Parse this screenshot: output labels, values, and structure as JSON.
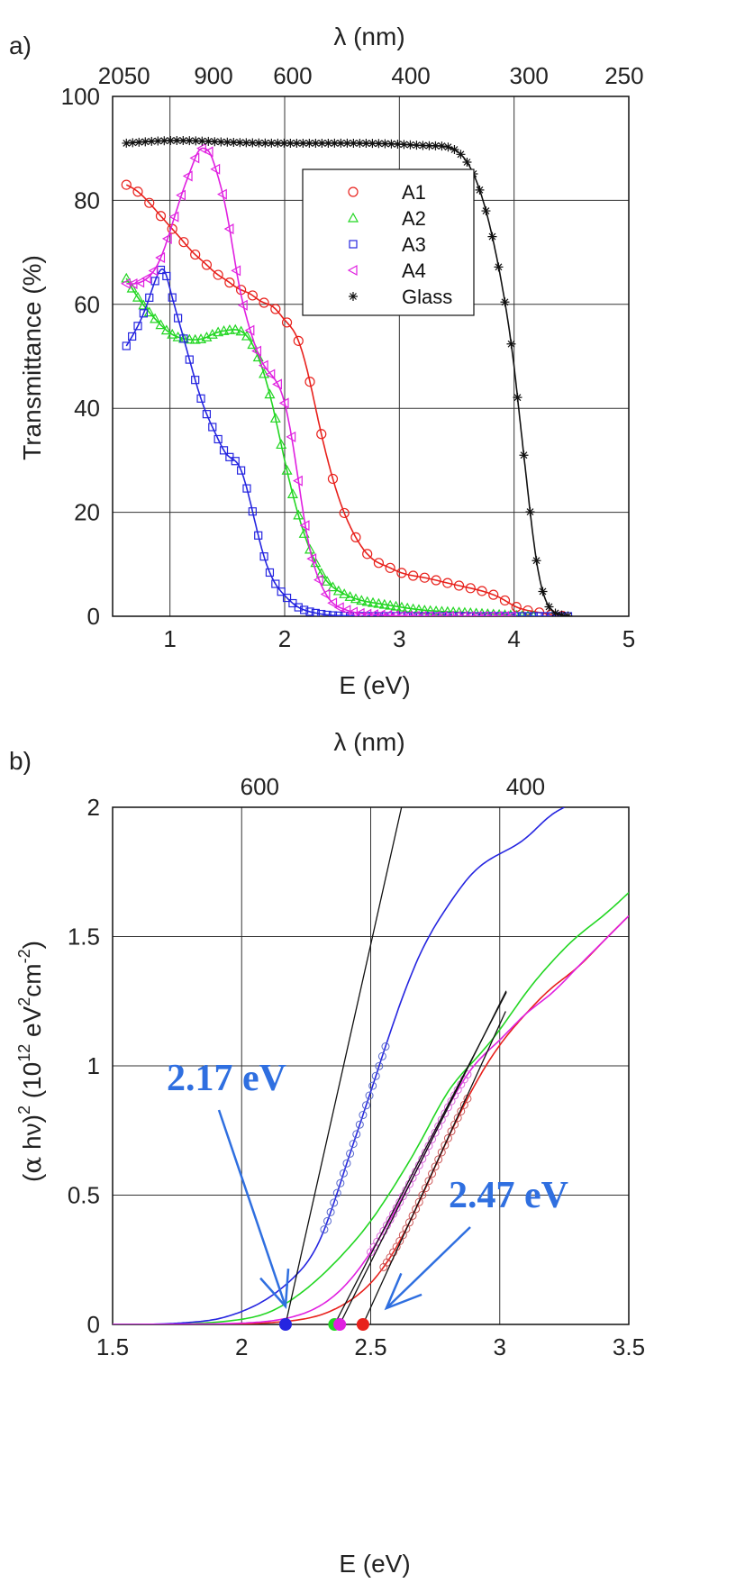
{
  "chart_data": [
    {
      "panel": "a)",
      "type": "line",
      "title": "",
      "xlabel": "E (eV)",
      "ylabel": "Transmittance (%)",
      "top_axis_label": "λ (nm)",
      "xlim": [
        0.5,
        5
      ],
      "ylim": [
        0,
        100
      ],
      "xticks": [
        1,
        2,
        3,
        4,
        5
      ],
      "yticks": [
        0,
        20,
        40,
        60,
        80,
        100
      ],
      "top_ticks": [
        {
          "label": "2050",
          "e": 0.6
        },
        {
          "label": "900",
          "e": 1.38
        },
        {
          "label": "600",
          "e": 2.07
        },
        {
          "label": "400",
          "e": 3.1
        },
        {
          "label": "300",
          "e": 4.13
        },
        {
          "label": "250",
          "e": 4.96
        }
      ],
      "grid": true,
      "legend_position": "center",
      "series": [
        {
          "name": "A1",
          "marker": "circle",
          "color": "#e8211c",
          "x": [
            0.62,
            0.7,
            0.8,
            0.9,
            1.0,
            1.1,
            1.2,
            1.3,
            1.4,
            1.5,
            1.6,
            1.7,
            1.8,
            1.9,
            2.0,
            2.1,
            2.2,
            2.3,
            2.4,
            2.5,
            2.6,
            2.7,
            2.8,
            2.9,
            3.0,
            3.2,
            3.4,
            3.6,
            3.8,
            3.9,
            4.0,
            4.2,
            4.4,
            4.5
          ],
          "y": [
            83,
            82,
            80,
            77.5,
            75,
            72.5,
            70,
            68,
            66,
            64.5,
            63,
            62,
            60.5,
            59.5,
            57,
            54,
            47,
            37,
            28,
            21,
            16,
            12.5,
            10.5,
            9.5,
            8.5,
            7.5,
            6.5,
            5.5,
            4.3,
            3.3,
            2,
            0.8,
            0.1,
            0
          ]
        },
        {
          "name": "A2",
          "marker": "triangle",
          "color": "#22d622",
          "x": [
            0.62,
            0.7,
            0.8,
            0.9,
            1.0,
            1.1,
            1.2,
            1.3,
            1.4,
            1.5,
            1.6,
            1.7,
            1.8,
            1.9,
            2.0,
            2.1,
            2.2,
            2.3,
            2.4,
            2.5,
            2.6,
            2.8,
            3.0,
            3.2,
            3.5,
            3.9,
            4.2
          ],
          "y": [
            65,
            62,
            59,
            56.5,
            54.5,
            53.5,
            53.2,
            53.5,
            54.5,
            55,
            55,
            53,
            48,
            40,
            30,
            21,
            14,
            9,
            6,
            4.5,
            3.5,
            2.5,
            1.8,
            1.2,
            0.8,
            0.3,
            0
          ]
        },
        {
          "name": "A3",
          "marker": "square",
          "color": "#2525e0",
          "x": [
            0.62,
            0.7,
            0.8,
            0.9,
            0.95,
            1.0,
            1.1,
            1.2,
            1.3,
            1.4,
            1.5,
            1.6,
            1.7,
            1.8,
            1.9,
            2.0,
            2.1,
            2.2,
            2.3,
            2.4,
            2.5,
            3.0,
            3.5,
            4.0,
            4.5
          ],
          "y": [
            52,
            55,
            60,
            66,
            66.5,
            63,
            55,
            47,
            40,
            35,
            31,
            29,
            22,
            13,
            7,
            4,
            2,
            1,
            0.5,
            0.2,
            0.1,
            0,
            0,
            0,
            0
          ]
        },
        {
          "name": "A4",
          "marker": "triangle-left",
          "color": "#e020e0",
          "x": [
            0.62,
            0.7,
            0.8,
            0.9,
            1.0,
            1.1,
            1.2,
            1.25,
            1.3,
            1.35,
            1.4,
            1.5,
            1.6,
            1.7,
            1.8,
            1.9,
            2.0,
            2.1,
            2.2,
            2.3,
            2.4,
            2.5,
            2.6,
            2.8,
            3.0,
            3.5,
            4.0
          ],
          "y": [
            64,
            64,
            65,
            68,
            74,
            81,
            87,
            89.5,
            90,
            89,
            86,
            77,
            64,
            55,
            49,
            46,
            41,
            29,
            15,
            7,
            3,
            1.5,
            0.8,
            0.3,
            0.1,
            0,
            0
          ]
        },
        {
          "name": "Glass",
          "marker": "asterisk",
          "color": "#111111",
          "x": [
            0.62,
            1.0,
            1.5,
            2.0,
            2.5,
            3.0,
            3.3,
            3.5,
            3.6,
            3.7,
            3.8,
            3.9,
            4.0,
            4.05,
            4.1,
            4.2,
            4.3,
            4.4,
            4.5
          ],
          "y": [
            91,
            91.5,
            91.2,
            91,
            91,
            90.8,
            90.5,
            89.5,
            87,
            82,
            74,
            63,
            48,
            38,
            28,
            10,
            2,
            0.3,
            0
          ]
        }
      ]
    },
    {
      "panel": "b)",
      "type": "line",
      "title": "",
      "xlabel": "E (eV)",
      "ylabel": "(α hν)² (10¹² eV²cm⁻²)",
      "ylabel_parts": {
        "a": "(",
        "b": "α",
        "c": " hν)",
        "d": "2",
        "e": " (10",
        "f": "12",
        "g": " eV",
        "h": "2",
        "i": "cm",
        "j": "-2",
        "k": ")"
      },
      "top_axis_label": "λ (nm)",
      "xlim": [
        1.5,
        3.5
      ],
      "ylim": [
        0,
        2
      ],
      "xticks": [
        1.5,
        2,
        2.5,
        3,
        3.5
      ],
      "yticks": [
        0,
        0.5,
        1,
        1.5,
        2
      ],
      "top_ticks": [
        {
          "label": "600",
          "e": 2.07
        },
        {
          "label": "400",
          "e": 3.1
        }
      ],
      "grid": true,
      "annotations": [
        {
          "text": "2.17 eV",
          "value": 2.17,
          "color": "#2f6fe0"
        },
        {
          "text": "2.47 eV",
          "value": 2.47,
          "color": "#2f6fe0"
        }
      ],
      "series": [
        {
          "name": "A1",
          "color": "#e8211c",
          "x": [
            1.5,
            1.8,
            2.0,
            2.1,
            2.2,
            2.3,
            2.4,
            2.5,
            2.6,
            2.7,
            2.8,
            2.9,
            3.0,
            3.1,
            3.2,
            3.3,
            3.4,
            3.5
          ],
          "y": [
            0,
            0,
            0.002,
            0.006,
            0.015,
            0.035,
            0.08,
            0.16,
            0.3,
            0.5,
            0.72,
            0.92,
            1.08,
            1.2,
            1.3,
            1.38,
            1.48,
            1.58
          ]
        },
        {
          "name": "A2",
          "color": "#22d622",
          "x": [
            1.5,
            1.8,
            2.0,
            2.1,
            2.2,
            2.3,
            2.4,
            2.5,
            2.6,
            2.7,
            2.8,
            2.9,
            3.0,
            3.1,
            3.2,
            3.3,
            3.4,
            3.5
          ],
          "y": [
            0,
            0.003,
            0.02,
            0.045,
            0.1,
            0.18,
            0.28,
            0.4,
            0.55,
            0.72,
            0.9,
            1.02,
            1.14,
            1.28,
            1.4,
            1.5,
            1.58,
            1.67
          ]
        },
        {
          "name": "A3",
          "color": "#2525e0",
          "x": [
            1.5,
            1.7,
            1.8,
            1.9,
            2.0,
            2.1,
            2.2,
            2.3,
            2.4,
            2.5,
            2.6,
            2.7,
            2.8,
            2.9,
            3.0,
            3.1,
            3.2,
            3.25
          ],
          "y": [
            0,
            0.002,
            0.008,
            0.02,
            0.05,
            0.1,
            0.18,
            0.32,
            0.6,
            0.9,
            1.2,
            1.45,
            1.62,
            1.75,
            1.82,
            1.88,
            1.97,
            2.0
          ]
        },
        {
          "name": "A4",
          "color": "#e020e0",
          "x": [
            1.5,
            1.8,
            2.0,
            2.1,
            2.2,
            2.3,
            2.4,
            2.5,
            2.6,
            2.7,
            2.8,
            2.9,
            3.0,
            3.1,
            3.2,
            3.3,
            3.4,
            3.5
          ],
          "y": [
            0,
            0.001,
            0.005,
            0.012,
            0.03,
            0.07,
            0.15,
            0.28,
            0.45,
            0.64,
            0.84,
            1.0,
            1.1,
            1.2,
            1.28,
            1.38,
            1.48,
            1.58
          ]
        }
      ],
      "fit_lines": [
        {
          "name": "A3 fit",
          "x0": 2.17,
          "slope": 4.45
        },
        {
          "name": "A2 fit",
          "x0": 2.36,
          "slope": 1.93
        },
        {
          "name": "A4 fit",
          "x0": 2.38,
          "slope": 2.0
        },
        {
          "name": "A1 fit",
          "x0": 2.47,
          "slope": 2.19
        }
      ],
      "intercept_points": [
        {
          "x": 2.17,
          "color": "#2525e0"
        },
        {
          "x": 2.36,
          "color": "#22d622"
        },
        {
          "x": 2.38,
          "color": "#e020e0"
        },
        {
          "x": 2.47,
          "color": "#e8211c"
        }
      ]
    }
  ]
}
